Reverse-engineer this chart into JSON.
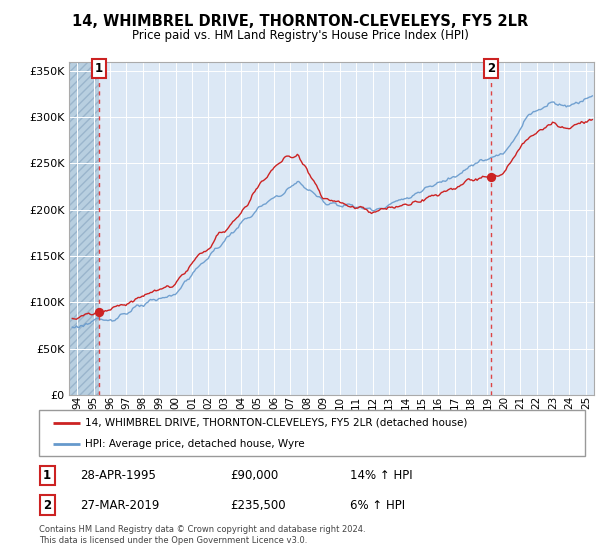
{
  "title": "14, WHIMBREL DRIVE, THORNTON-CLEVELEYS, FY5 2LR",
  "subtitle": "Price paid vs. HM Land Registry's House Price Index (HPI)",
  "ylim": [
    0,
    360000
  ],
  "yticks": [
    0,
    50000,
    100000,
    150000,
    200000,
    250000,
    300000,
    350000
  ],
  "ytick_labels": [
    "£0",
    "£50K",
    "£100K",
    "£150K",
    "£200K",
    "£250K",
    "£300K",
    "£350K"
  ],
  "sale1_date": 1995.32,
  "sale1_price": 90000,
  "sale2_date": 2019.24,
  "sale2_price": 235500,
  "legend_line1": "14, WHIMBREL DRIVE, THORNTON-CLEVELEYS, FY5 2LR (detached house)",
  "legend_line2": "HPI: Average price, detached house, Wyre",
  "table_row1": "28-APR-1995",
  "table_price1": "£90,000",
  "table_hpi1": "14% ↑ HPI",
  "table_row2": "27-MAR-2019",
  "table_price2": "£235,500",
  "table_hpi2": "6% ↑ HPI",
  "footer": "Contains HM Land Registry data © Crown copyright and database right 2024.\nThis data is licensed under the Open Government Licence v3.0.",
  "hpi_color": "#6699cc",
  "price_color": "#cc2222",
  "vline_color": "#dd4444",
  "bg_color": "#dce8f5",
  "hatch_color": "#b8cfe0",
  "xmin": 1993.5,
  "xmax": 2025.5
}
